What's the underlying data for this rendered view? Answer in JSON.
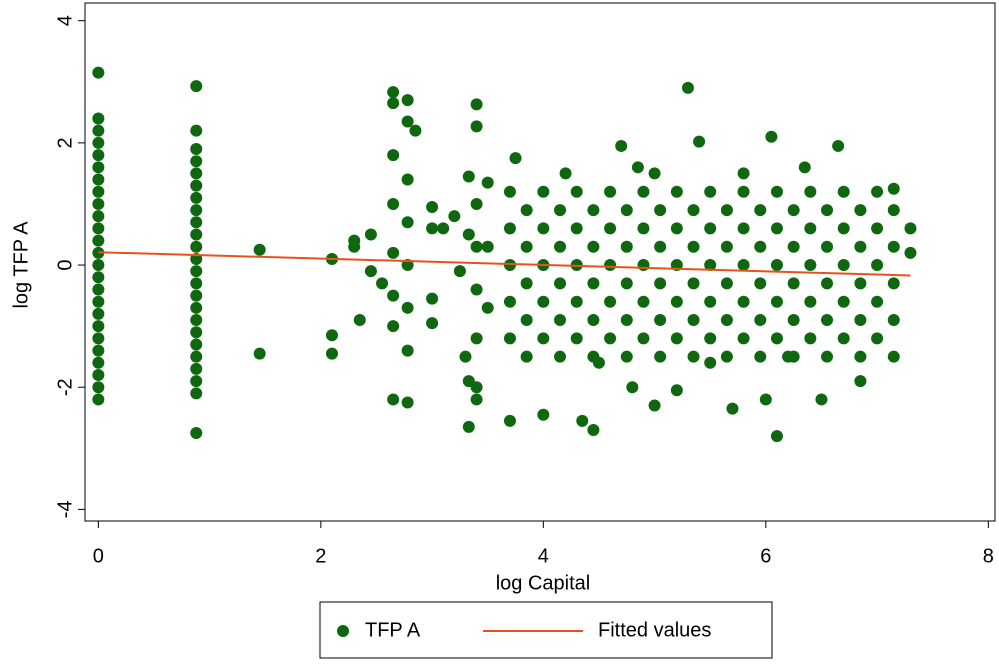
{
  "chart_data": {
    "type": "scatter",
    "xlabel": "log Capital",
    "ylabel": "log TFP A",
    "xlim": [
      -0.12,
      8.06
    ],
    "ylim": [
      -4.19,
      4.29
    ],
    "xticks": [
      0,
      2,
      4,
      6,
      8
    ],
    "yticks": [
      -4,
      -2,
      0,
      2,
      4
    ],
    "legend": "bottom",
    "series": [
      {
        "name": "TFP A",
        "type": "scatter",
        "color": "#0f680f",
        "x": [
          0,
          0,
          0,
          0,
          0,
          0,
          0,
          0,
          0,
          0,
          0,
          0,
          0,
          0,
          0,
          0,
          0,
          0,
          0,
          0,
          0,
          0,
          0,
          0,
          0,
          0.88,
          0.88,
          0.88,
          0.88,
          0.88,
          0.88,
          0.88,
          0.88,
          0.88,
          0.88,
          0.88,
          0.88,
          0.88,
          0.88,
          0.88,
          0.88,
          0.88,
          0.88,
          0.88,
          0.88,
          0.88,
          0.88,
          0.88,
          0.88,
          1.45,
          1.45,
          2.1,
          2.1,
          2.1,
          2.3,
          2.3,
          2.35,
          2.45,
          2.45,
          2.55,
          2.65,
          2.65,
          2.65,
          2.65,
          2.65,
          2.65,
          2.65,
          2.65,
          2.78,
          2.78,
          2.78,
          2.78,
          2.78,
          2.78,
          2.78,
          2.78,
          2.85,
          3.0,
          3.0,
          3.0,
          3.0,
          3.1,
          3.2,
          3.25,
          3.3,
          3.33,
          3.33,
          3.33,
          3.33,
          3.4,
          3.4,
          3.4,
          3.4,
          3.4,
          3.4,
          3.4,
          3.4,
          3.5,
          3.5,
          3.5,
          3.7,
          3.75,
          4.0,
          4.35,
          4.45,
          4.7,
          4.85,
          5.0,
          5.3,
          5.4,
          5.7,
          6.0,
          6.05,
          6.1,
          6.35,
          6.5,
          6.65,
          6.85,
          7.3,
          7.3,
          7.15,
          4.2,
          5.0,
          5.8,
          4.5,
          5.5,
          6.2,
          5.2,
          4.8,
          3.7,
          3.7,
          3.7,
          3.7,
          3.7,
          3.85,
          3.85,
          3.85,
          3.85,
          3.85,
          4.0,
          4.0,
          4.0,
          4.0,
          4.0,
          4.15,
          4.15,
          4.15,
          4.15,
          4.15,
          4.3,
          4.3,
          4.3,
          4.3,
          4.3,
          4.45,
          4.45,
          4.45,
          4.45,
          4.45,
          4.6,
          4.6,
          4.6,
          4.6,
          4.6,
          4.75,
          4.75,
          4.75,
          4.75,
          4.75,
          4.9,
          4.9,
          4.9,
          4.9,
          4.9,
          5.05,
          5.05,
          5.05,
          5.05,
          5.05,
          5.2,
          5.2,
          5.2,
          5.2,
          5.2,
          5.35,
          5.35,
          5.35,
          5.35,
          5.35,
          5.5,
          5.5,
          5.5,
          5.5,
          5.5,
          5.65,
          5.65,
          5.65,
          5.65,
          5.65,
          5.8,
          5.8,
          5.8,
          5.8,
          5.8,
          5.95,
          5.95,
          5.95,
          5.95,
          5.95,
          6.1,
          6.1,
          6.1,
          6.1,
          6.1,
          6.25,
          6.25,
          6.25,
          6.25,
          6.25,
          6.4,
          6.4,
          6.4,
          6.4,
          6.4,
          6.55,
          6.55,
          6.55,
          6.55,
          6.55,
          6.7,
          6.7,
          6.7,
          6.7,
          6.7,
          6.85,
          6.85,
          6.85,
          6.85,
          6.85,
          7.0,
          7.0,
          7.0,
          7.0,
          7.0,
          7.15,
          7.15,
          7.15,
          7.15,
          7.15
        ],
        "values": [
          -2.2,
          -2.0,
          -1.8,
          -1.6,
          -1.4,
          -1.2,
          -1.0,
          -0.8,
          -0.6,
          -0.4,
          -0.2,
          0,
          0.2,
          0.4,
          0.6,
          0.8,
          1.0,
          1.2,
          1.4,
          1.6,
          1.8,
          2.0,
          2.2,
          2.4,
          3.15,
          -2.75,
          -2.1,
          -1.9,
          -1.7,
          -1.5,
          -1.3,
          -1.1,
          -0.9,
          -0.7,
          -0.5,
          -0.3,
          -0.1,
          0.1,
          0.3,
          0.5,
          0.7,
          0.9,
          1.1,
          1.3,
          1.5,
          1.7,
          1.9,
          2.2,
          2.93,
          0.25,
          -1.45,
          0.1,
          -1.15,
          -1.45,
          0.4,
          0.3,
          -0.9,
          0.5,
          -0.1,
          -0.3,
          2.83,
          2.65,
          1.8,
          1.0,
          0.2,
          -0.5,
          -1.0,
          -2.2,
          2.7,
          2.35,
          1.4,
          0.7,
          0,
          -0.7,
          -1.4,
          -2.25,
          2.2,
          0.95,
          0.6,
          -0.55,
          -0.95,
          0.6,
          0.8,
          -0.1,
          -1.5,
          1.45,
          0.5,
          -1.9,
          -2.65,
          2.63,
          2.27,
          1.0,
          0.3,
          -0.4,
          -1.2,
          -2.0,
          -2.2,
          1.35,
          0.3,
          -0.7,
          -2.55,
          1.75,
          -2.45,
          -2.55,
          -2.7,
          1.95,
          1.6,
          -2.3,
          2.9,
          2.02,
          -2.35,
          -2.2,
          2.1,
          -2.8,
          1.6,
          -2.2,
          1.95,
          -1.9,
          0.6,
          0.2,
          1.25,
          1.5,
          1.5,
          1.5,
          -1.6,
          -1.6,
          -1.5,
          -2.05,
          -2.0,
          -1.2,
          -0.6,
          0,
          0.6,
          1.2,
          -1.5,
          -0.9,
          -0.3,
          0.3,
          0.9,
          -1.2,
          -0.6,
          0,
          0.6,
          1.2,
          -1.5,
          -0.9,
          -0.3,
          0.3,
          0.9,
          -1.2,
          -0.6,
          0,
          0.6,
          1.2,
          -1.5,
          -0.9,
          -0.3,
          0.3,
          0.9,
          -1.2,
          -0.6,
          0,
          0.6,
          1.2,
          -1.5,
          -0.9,
          -0.3,
          0.3,
          0.9,
          -1.2,
          -0.6,
          0,
          0.6,
          1.2,
          -1.5,
          -0.9,
          -0.3,
          0.3,
          0.9,
          -1.2,
          -0.6,
          0,
          0.6,
          1.2,
          -1.5,
          -0.9,
          -0.3,
          0.3,
          0.9,
          -1.2,
          -0.6,
          0,
          0.6,
          1.2,
          -1.5,
          -0.9,
          -0.3,
          0.3,
          0.9,
          -1.2,
          -0.6,
          0,
          0.6,
          1.2,
          -1.5,
          -0.9,
          -0.3,
          0.3,
          0.9,
          -1.2,
          -0.6,
          0,
          0.6,
          1.2,
          -1.5,
          -0.9,
          -0.3,
          0.3,
          0.9,
          -1.2,
          -0.6,
          0,
          0.6,
          1.2,
          -1.5,
          -0.9,
          -0.3,
          0.3,
          0.9,
          -1.2,
          -0.6,
          0,
          0.6,
          1.2,
          -1.5,
          -0.9,
          -0.3,
          0.3,
          0.9,
          -1.2,
          -0.6,
          0,
          0.6,
          1.2,
          -1.5,
          -0.9,
          -0.3,
          0.3,
          0.9
        ]
      },
      {
        "name": "Fitted values",
        "type": "line",
        "color": "#e8521a",
        "x": [
          0,
          7.3
        ],
        "values": [
          0.21,
          -0.17
        ]
      }
    ]
  }
}
